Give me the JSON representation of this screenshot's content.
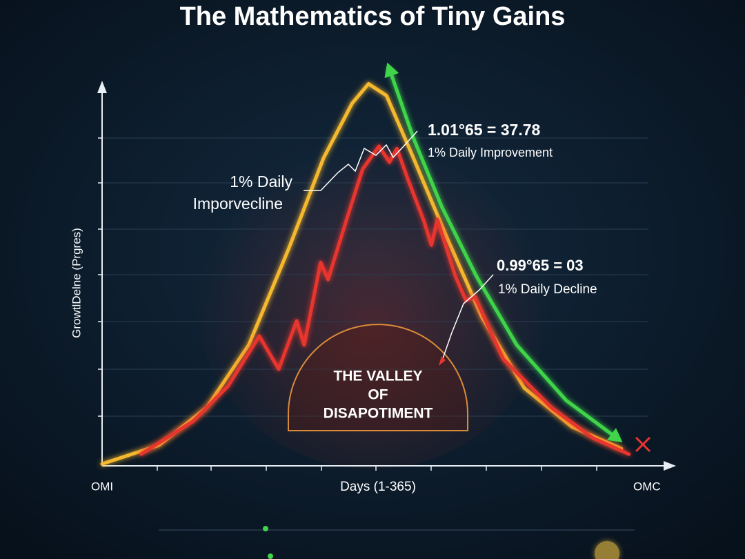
{
  "chart_data": {
    "type": "line",
    "title": "The Mathematics of Tiny Gains",
    "y_label": "GrowtlDelne (Prgres)",
    "x_label": "Days (1-365)",
    "x_start_label": "OMI",
    "x_end_label": "OMC",
    "xlim": [
      0,
      365
    ],
    "ylim": [
      0,
      105
    ],
    "grid": true,
    "series": [
      {
        "color": "#f5b82e",
        "x": [
          0,
          38,
          70,
          98,
          125,
          148,
          167,
          178,
          190,
          208,
          231,
          254,
          282,
          314,
          347
        ],
        "values": [
          0.5,
          5.3,
          15,
          31,
          56,
          79,
          93,
          98,
          95,
          79,
          58,
          38,
          20,
          10,
          4.4
        ]
      },
      {
        "color": "#e8352f",
        "x": [
          26,
          61,
          84,
          105,
          118,
          130,
          135,
          146,
          151,
          163,
          174,
          185,
          192,
          197,
          204,
          215,
          220,
          224,
          236,
          243,
          249,
          268,
          300,
          328,
          352
        ],
        "values": [
          3.0,
          11.5,
          20.4,
          33.3,
          24.8,
          37.2,
          31.0,
          52.2,
          47.8,
          62.8,
          76.1,
          82.0,
          77.9,
          81.4,
          73.8,
          62.8,
          56.6,
          63.2,
          48.7,
          42.5,
          43.4,
          27.4,
          15.0,
          7.1,
          3.0
        ]
      },
      {
        "color": "#3fd44a",
        "x": [
          192,
          208,
          227,
          250,
          277,
          310,
          344
        ],
        "values": [
          101.8,
          84.1,
          66.4,
          48.7,
          31.0,
          16.8,
          7.1
        ]
      }
    ],
    "annotations": {
      "improvement_formula": "1.01°65 = 37.78",
      "improvement_label": "1% Daily Improvement",
      "left_label_line1": "1% Daily",
      "left_label_line2": "Imporvecline",
      "decline_formula": "0.99°65 = 03",
      "decline_label": "1% Daily Decline",
      "valley_line1": "THE VALLEY",
      "valley_line2": "OF",
      "valley_line3": "DISAPOTIMENT"
    }
  }
}
